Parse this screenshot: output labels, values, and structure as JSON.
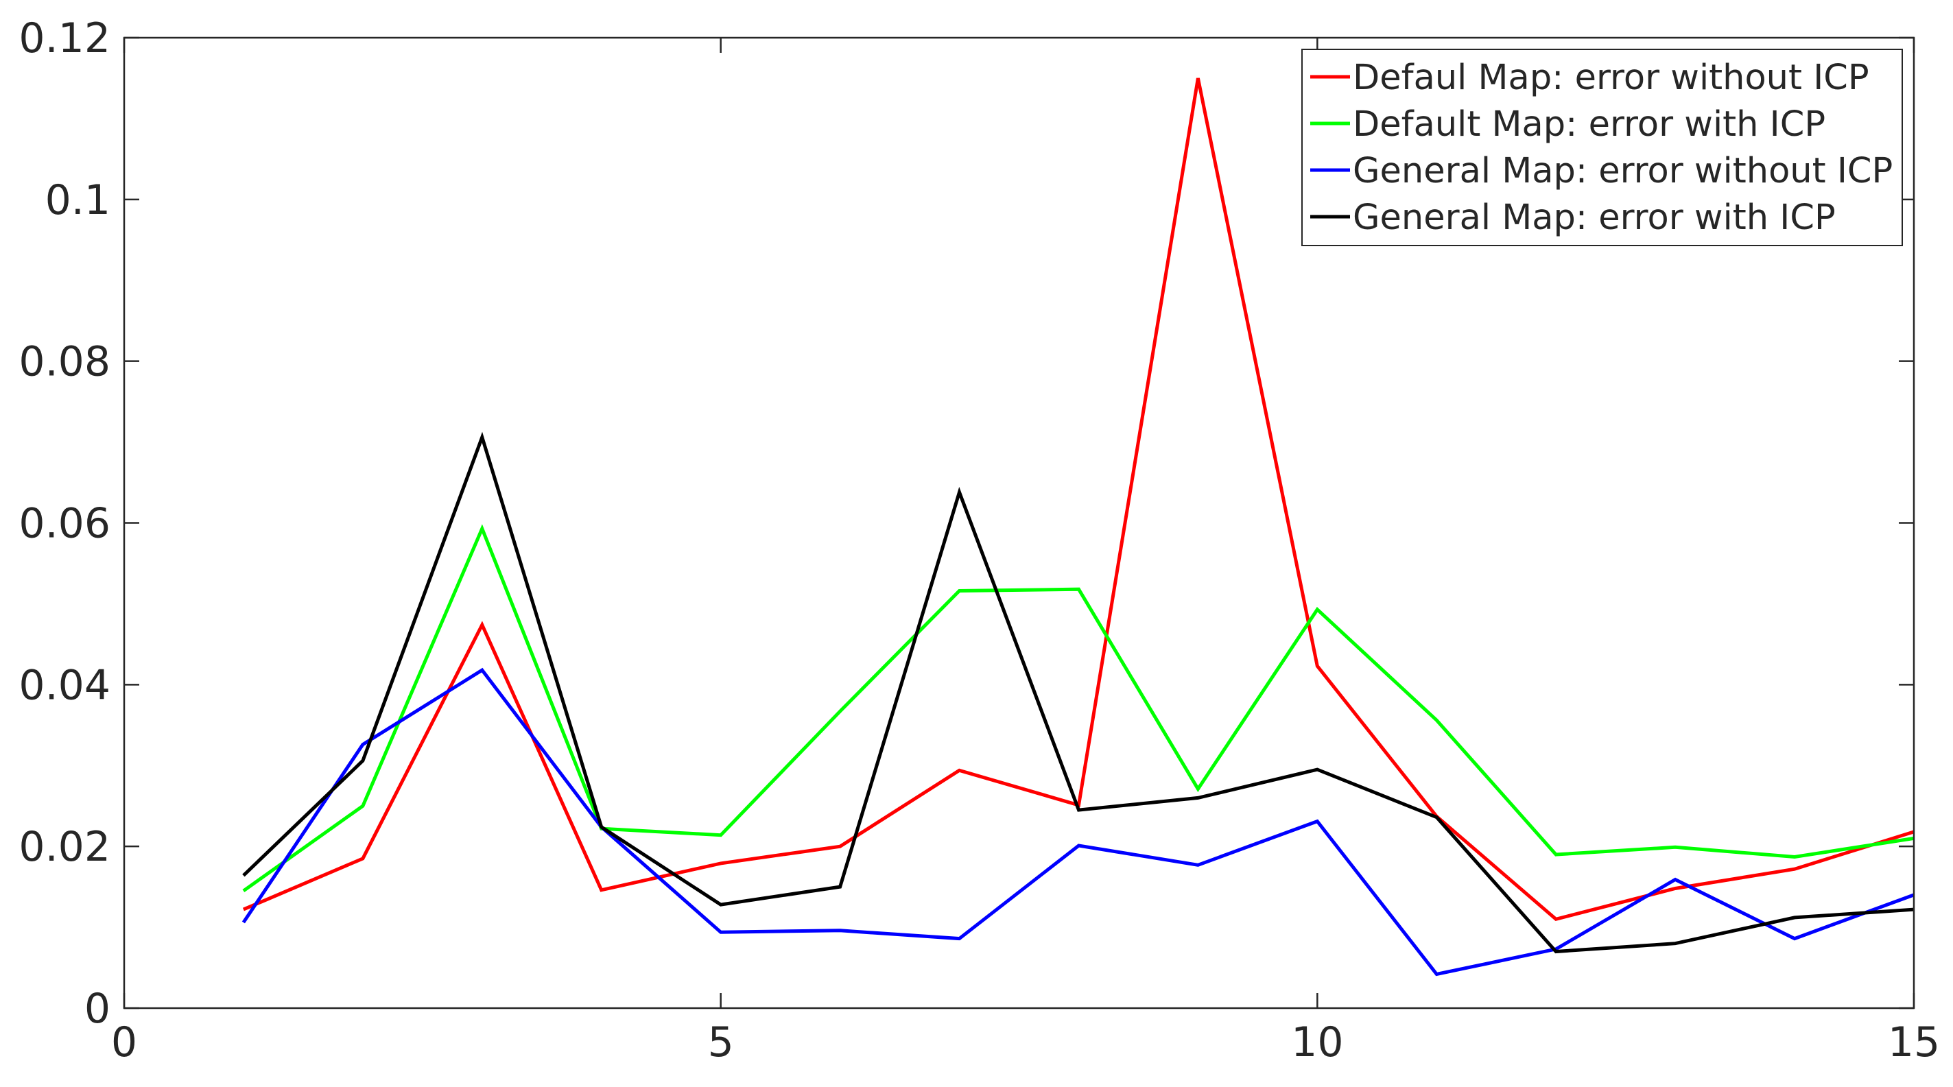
{
  "chart_data": {
    "type": "line",
    "title": "",
    "xlabel": "",
    "ylabel": "",
    "xlim": [
      0,
      15
    ],
    "ylim": [
      0,
      0.12
    ],
    "x_ticks": [
      "0",
      "5",
      "10",
      "15"
    ],
    "y_ticks": [
      "0",
      "0.02",
      "0.04",
      "0.06",
      "0.08",
      "0.1",
      "0.12"
    ],
    "grid": false,
    "legend_position": "top-right",
    "x": [
      1,
      2,
      3,
      4,
      5,
      6,
      7,
      8,
      9,
      10,
      11,
      12,
      13,
      14,
      15
    ],
    "series": [
      {
        "name": "Defaul Map: error without ICP",
        "color": "#ff0000",
        "values": [
          0.0122,
          0.0185,
          0.0474,
          0.0146,
          0.0179,
          0.02,
          0.0294,
          0.0251,
          0.115,
          0.0423,
          0.0237,
          0.011,
          0.0148,
          0.0172,
          0.0218
        ]
      },
      {
        "name": "Default Map: error with ICP",
        "color": "#00ff00",
        "values": [
          0.0145,
          0.025,
          0.0593,
          0.0222,
          0.0214,
          0.0367,
          0.0516,
          0.0518,
          0.0271,
          0.0493,
          0.0356,
          0.019,
          0.0199,
          0.0187,
          0.021
        ]
      },
      {
        "name": "General Map: error without ICP",
        "color": "#0000ff",
        "values": [
          0.0106,
          0.0326,
          0.0418,
          0.0224,
          0.0094,
          0.0096,
          0.0086,
          0.0201,
          0.0177,
          0.0231,
          0.0042,
          0.0073,
          0.0159,
          0.0086,
          0.014
        ]
      },
      {
        "name": "General Map: error with ICP",
        "color": "#000000",
        "values": [
          0.0164,
          0.0306,
          0.0706,
          0.0224,
          0.0128,
          0.015,
          0.0638,
          0.0245,
          0.026,
          0.0295,
          0.0236,
          0.007,
          0.008,
          0.0112,
          0.0122
        ]
      }
    ]
  }
}
